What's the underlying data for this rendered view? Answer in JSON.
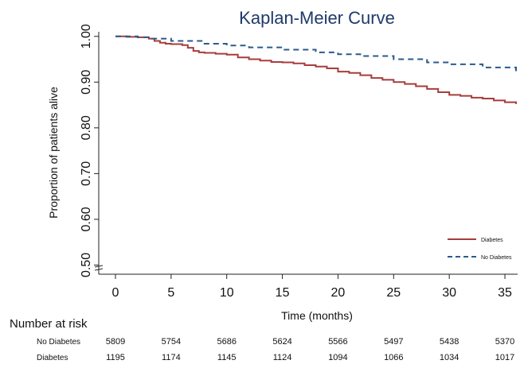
{
  "chart_data": {
    "type": "line",
    "title": "Kaplan-Meier Curve",
    "xlabel": "Time (months)",
    "ylabel": "Proportion of patients alive",
    "xlim": [
      0,
      36
    ],
    "ylim": [
      0.48,
      1.01
    ],
    "x_ticks": [
      0,
      5,
      10,
      15,
      20,
      25,
      30,
      35
    ],
    "x_tick_labels": [
      "0",
      "5",
      "10",
      "15",
      "20",
      "25",
      "30",
      "35"
    ],
    "y_ticks": [
      0.5,
      0.6,
      0.7,
      0.8,
      0.9,
      1.0
    ],
    "y_tick_labels": [
      "0.50",
      "0.60",
      "0.70",
      "0.80",
      "0.90",
      "1.00"
    ],
    "grid": false,
    "legend_position": "bottom-right",
    "series": [
      {
        "name": "Diabetes",
        "color": "#a83c3c",
        "line_style": "solid",
        "x": [
          0,
          1,
          2,
          3,
          3.5,
          4,
          4.5,
          5,
          6,
          6.5,
          7,
          7.5,
          8,
          9,
          10,
          11,
          12,
          13,
          14,
          15,
          16,
          17,
          18,
          19,
          20,
          21,
          22,
          23,
          24,
          25,
          26,
          27,
          28,
          29,
          30,
          31,
          32,
          33,
          34,
          35,
          36
        ],
        "y": [
          1.0,
          0.999,
          0.998,
          0.995,
          0.99,
          0.986,
          0.984,
          0.983,
          0.981,
          0.975,
          0.968,
          0.965,
          0.964,
          0.962,
          0.96,
          0.954,
          0.95,
          0.947,
          0.944,
          0.943,
          0.941,
          0.937,
          0.934,
          0.93,
          0.923,
          0.92,
          0.915,
          0.909,
          0.905,
          0.9,
          0.896,
          0.891,
          0.885,
          0.878,
          0.872,
          0.87,
          0.866,
          0.864,
          0.86,
          0.856,
          0.852
        ]
      },
      {
        "name": "No Diabetes",
        "color": "#2b5a8c",
        "line_style": "dashed",
        "x": [
          0,
          2,
          3,
          5,
          8,
          10,
          12,
          15,
          18,
          20,
          22,
          25,
          28,
          30,
          33,
          36
        ],
        "y": [
          1.0,
          0.998,
          0.995,
          0.99,
          0.984,
          0.98,
          0.976,
          0.971,
          0.965,
          0.961,
          0.957,
          0.95,
          0.943,
          0.939,
          0.932,
          0.924
        ]
      }
    ],
    "risk_table": {
      "title": "Number at risk",
      "time_points": [
        0,
        5,
        10,
        15,
        20,
        25,
        30,
        35
      ],
      "rows": [
        {
          "label": "No Diabetes",
          "values": [
            "5809",
            "5754",
            "5686",
            "5624",
            "5566",
            "5497",
            "5438",
            "5370"
          ]
        },
        {
          "label": "Diabetes",
          "values": [
            "1195",
            "1174",
            "1145",
            "1124",
            "1094",
            "1066",
            "1034",
            "1017"
          ]
        }
      ]
    }
  }
}
